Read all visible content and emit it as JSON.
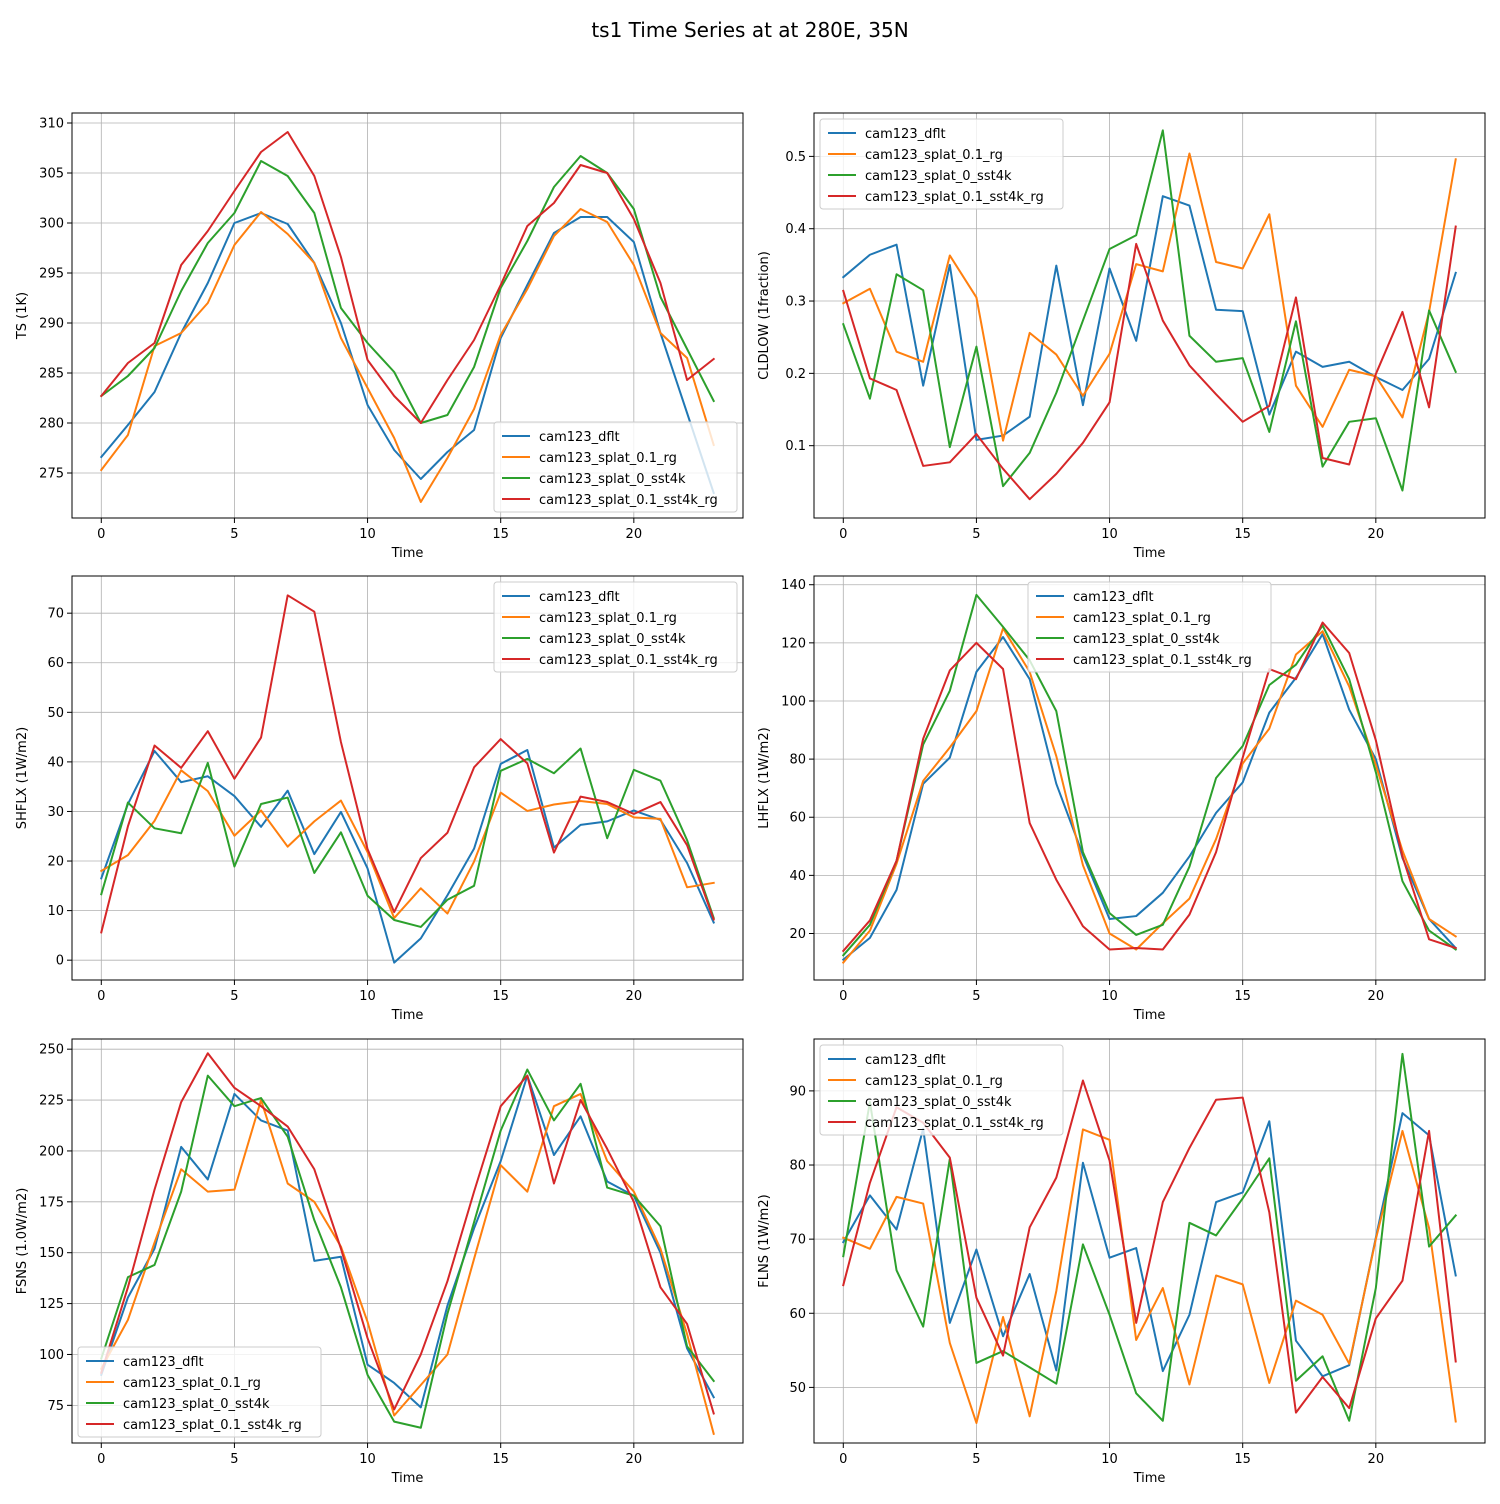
{
  "figure_title": "ts1 Time Series at at 280E, 35N",
  "colors": {
    "cam123_dflt": "#1f77b4",
    "cam123_splat_0.1_rg": "#ff7f0e",
    "cam123_splat_0_sst4k": "#2ca02c",
    "cam123_splat_0.1_sst4k_rg": "#d62728"
  },
  "chart_data": [
    {
      "type": "line",
      "xlabel": "Time",
      "ylabel": "TS (1K)",
      "xlim": [
        -1.1,
        24.1
      ],
      "ylim": [
        270.5,
        311.0
      ],
      "xticks": [
        0,
        5,
        10,
        15,
        20
      ],
      "yticks": [
        275,
        280,
        285,
        290,
        295,
        300,
        305,
        310
      ],
      "grid": true,
      "legend_position": "lower-right",
      "x": [
        0,
        1,
        2,
        3,
        4,
        5,
        6,
        7,
        8,
        9,
        10,
        11,
        12,
        13,
        14,
        15,
        16,
        17,
        18,
        19,
        20,
        21,
        22,
        23
      ],
      "series": [
        {
          "name": "cam123_dflt",
          "values": [
            276.6,
            279.8,
            283.1,
            289.0,
            294.0,
            300.0,
            301.0,
            299.9,
            296.0,
            290.0,
            281.8,
            277.3,
            274.4,
            277.1,
            279.3,
            288.5,
            293.8,
            299.0,
            300.6,
            300.6,
            298.1,
            289.0,
            281.0,
            273.0
          ]
        },
        {
          "name": "cam123_splat_0.1_rg",
          "values": [
            275.3,
            278.8,
            287.7,
            289.0,
            292.0,
            297.8,
            301.1,
            298.9,
            296.0,
            288.5,
            283.5,
            278.5,
            272.1,
            276.5,
            281.4,
            288.8,
            293.4,
            298.7,
            301.4,
            300.1,
            295.8,
            289.0,
            286.5,
            277.8
          ]
        },
        {
          "name": "cam123_splat_0_sst4k",
          "values": [
            282.7,
            284.7,
            287.5,
            293.2,
            298.0,
            301.0,
            306.2,
            304.7,
            301.0,
            291.5,
            288.0,
            285.1,
            280.0,
            280.8,
            285.6,
            293.5,
            298.2,
            303.6,
            306.7,
            305.0,
            301.4,
            292.6,
            287.4,
            282.2
          ]
        },
        {
          "name": "cam123_splat_0.1_sst4k_rg",
          "values": [
            282.7,
            286.0,
            288.0,
            295.8,
            299.2,
            303.2,
            307.1,
            309.1,
            304.7,
            296.6,
            286.3,
            282.7,
            280.0,
            284.3,
            288.3,
            293.8,
            299.7,
            302.0,
            305.8,
            305.0,
            300.4,
            294.0,
            284.3,
            286.4
          ]
        }
      ]
    },
    {
      "type": "line",
      "xlabel": "Time",
      "ylabel": "CLDLOW (1fraction)",
      "xlim": [
        -1.1,
        24.1
      ],
      "ylim": [
        0.0,
        0.56
      ],
      "xticks": [
        0,
        5,
        10,
        15,
        20
      ],
      "yticks": [
        0.1,
        0.2,
        0.3,
        0.4,
        0.5
      ],
      "grid": true,
      "legend_position": "top-left",
      "x": [
        0,
        1,
        2,
        3,
        4,
        5,
        6,
        7,
        8,
        9,
        10,
        11,
        12,
        13,
        14,
        15,
        16,
        17,
        18,
        19,
        20,
        21,
        22,
        23
      ],
      "series": [
        {
          "name": "cam123_dflt",
          "values": [
            0.333,
            0.364,
            0.378,
            0.183,
            0.35,
            0.108,
            0.114,
            0.14,
            0.349,
            0.156,
            0.345,
            0.245,
            0.445,
            0.432,
            0.288,
            0.286,
            0.143,
            0.23,
            0.209,
            0.216,
            0.195,
            0.177,
            0.22,
            0.339
          ]
        },
        {
          "name": "cam123_splat_0.1_rg",
          "values": [
            0.297,
            0.317,
            0.23,
            0.216,
            0.363,
            0.305,
            0.107,
            0.256,
            0.226,
            0.169,
            0.227,
            0.351,
            0.341,
            0.504,
            0.354,
            0.345,
            0.42,
            0.183,
            0.126,
            0.205,
            0.196,
            0.139,
            0.285,
            0.496
          ]
        },
        {
          "name": "cam123_splat_0_sst4k",
          "values": [
            0.268,
            0.165,
            0.337,
            0.315,
            0.098,
            0.237,
            0.044,
            0.09,
            0.173,
            0.273,
            0.372,
            0.391,
            0.536,
            0.252,
            0.216,
            0.221,
            0.119,
            0.272,
            0.071,
            0.133,
            0.138,
            0.038,
            0.287,
            0.202
          ]
        },
        {
          "name": "cam123_splat_0.1_sst4k_rg",
          "values": [
            0.314,
            0.193,
            0.177,
            0.072,
            0.077,
            0.116,
            0.068,
            0.026,
            0.061,
            0.104,
            0.16,
            0.379,
            0.273,
            0.211,
            0.171,
            0.133,
            0.155,
            0.305,
            0.083,
            0.074,
            0.199,
            0.285,
            0.153,
            0.403
          ]
        }
      ]
    },
    {
      "type": "line",
      "xlabel": "Time",
      "ylabel": "SHFLX (1W/m2)",
      "xlim": [
        -1.1,
        24.1
      ],
      "ylim": [
        -4.0,
        77.5
      ],
      "xticks": [
        0,
        5,
        10,
        15,
        20
      ],
      "yticks": [
        0,
        10,
        20,
        30,
        40,
        50,
        60,
        70
      ],
      "grid": true,
      "legend_position": "top-right",
      "x": [
        0,
        1,
        2,
        3,
        4,
        5,
        6,
        7,
        8,
        9,
        10,
        11,
        12,
        13,
        14,
        15,
        16,
        17,
        18,
        19,
        20,
        21,
        22,
        23
      ],
      "series": [
        {
          "name": "cam123_dflt",
          "values": [
            16.5,
            31.5,
            42.2,
            35.9,
            37.1,
            33.1,
            26.9,
            34.2,
            21.4,
            29.9,
            18.5,
            -0.5,
            4.4,
            13.1,
            22.5,
            39.6,
            42.4,
            22.7,
            27.3,
            28.0,
            30.2,
            28.3,
            19.6,
            7.6
          ]
        },
        {
          "name": "cam123_splat_0.1_rg",
          "values": [
            18.0,
            21.2,
            28.1,
            38.3,
            34.1,
            25.1,
            30.2,
            22.9,
            28.0,
            32.2,
            21.8,
            8.5,
            14.5,
            9.4,
            19.9,
            33.8,
            30.1,
            31.4,
            32.1,
            31.5,
            28.8,
            28.5,
            14.7,
            15.6
          ]
        },
        {
          "name": "cam123_splat_0_sst4k",
          "values": [
            13.3,
            31.8,
            26.6,
            25.6,
            39.8,
            18.9,
            31.5,
            32.8,
            17.6,
            25.8,
            13.0,
            8.1,
            6.7,
            12.2,
            15.0,
            38.2,
            40.6,
            37.7,
            42.7,
            24.6,
            38.4,
            36.2,
            24.2,
            8.5
          ]
        },
        {
          "name": "cam123_splat_0.1_sst4k_rg",
          "values": [
            5.6,
            27.0,
            43.3,
            38.8,
            46.2,
            36.6,
            44.9,
            73.6,
            70.3,
            44.0,
            22.4,
            9.7,
            20.6,
            25.7,
            38.9,
            44.6,
            39.7,
            21.7,
            33.0,
            31.9,
            29.5,
            31.9,
            23.2,
            8.2
          ]
        }
      ]
    },
    {
      "type": "line",
      "xlabel": "Time",
      "ylabel": "LHFLX (1W/m2)",
      "xlim": [
        -1.1,
        24.1
      ],
      "ylim": [
        4.0,
        143.0
      ],
      "xticks": [
        0,
        5,
        10,
        15,
        20
      ],
      "yticks": [
        20,
        40,
        60,
        80,
        100,
        120,
        140
      ],
      "grid": true,
      "legend_position": "top-center",
      "x": [
        0,
        1,
        2,
        3,
        4,
        5,
        6,
        7,
        8,
        9,
        10,
        11,
        12,
        13,
        14,
        15,
        16,
        17,
        18,
        19,
        20,
        21,
        22,
        23
      ],
      "series": [
        {
          "name": "cam123_dflt",
          "values": [
            11.0,
            18.5,
            35.0,
            71.5,
            80.5,
            110.0,
            122.0,
            107.5,
            71.5,
            47.0,
            25.0,
            26.0,
            34.0,
            46.5,
            61.5,
            72.0,
            96.0,
            108.0,
            123.0,
            97.0,
            80.0,
            46.0,
            25.0,
            15.0
          ]
        },
        {
          "name": "cam123_splat_0.1_rg",
          "values": [
            10.0,
            21.0,
            44.0,
            72.5,
            84.0,
            96.5,
            125.0,
            110.0,
            81.0,
            43.5,
            20.0,
            14.5,
            23.5,
            32.0,
            52.5,
            78.5,
            90.5,
            116.0,
            124.0,
            105.0,
            78.0,
            48.5,
            25.0,
            19.0
          ]
        },
        {
          "name": "cam123_splat_0_sst4k",
          "values": [
            12.5,
            23.0,
            45.0,
            85.0,
            103.5,
            136.5,
            125.5,
            114.0,
            96.5,
            48.0,
            27.0,
            19.5,
            23.0,
            43.0,
            73.5,
            84.5,
            105.5,
            112.5,
            126.0,
            107.5,
            75.5,
            38.0,
            21.0,
            14.5
          ]
        },
        {
          "name": "cam123_splat_0.1_sst4k_rg",
          "values": [
            14.0,
            24.5,
            45.0,
            87.0,
            110.5,
            120.0,
            111.0,
            58.0,
            38.5,
            22.5,
            14.5,
            15.0,
            14.5,
            26.5,
            48.0,
            80.5,
            111.0,
            107.5,
            127.0,
            116.5,
            86.5,
            46.5,
            18.0,
            15.0
          ]
        }
      ]
    },
    {
      "type": "line",
      "xlabel": "Time",
      "ylabel": "FSNS (1.0W/m2)",
      "xlim": [
        -1.1,
        24.1
      ],
      "ylim": [
        56.5,
        255.0
      ],
      "xticks": [
        0,
        5,
        10,
        15,
        20
      ],
      "yticks": [
        75,
        100,
        125,
        150,
        175,
        200,
        225,
        250
      ],
      "grid": true,
      "legend_position": "lower-left",
      "x": [
        0,
        1,
        2,
        3,
        4,
        5,
        6,
        7,
        8,
        9,
        10,
        11,
        12,
        13,
        14,
        15,
        16,
        17,
        18,
        19,
        20,
        21,
        22,
        23
      ],
      "series": [
        {
          "name": "cam123_dflt",
          "values": [
            90.0,
            128.0,
            152.0,
            202.0,
            186.0,
            228.0,
            215.0,
            210.0,
            146.0,
            148.0,
            95.0,
            86.0,
            74.0,
            124.0,
            162.0,
            195.0,
            237.0,
            198.0,
            217.0,
            185.0,
            178.0,
            150.0,
            103.0,
            79.0
          ]
        },
        {
          "name": "cam123_splat_0.1_rg",
          "values": [
            93.0,
            117.0,
            155.0,
            191.0,
            180.0,
            181.0,
            225.0,
            184.0,
            175.0,
            153.0,
            116.0,
            70.0,
            85.0,
            100.0,
            147.0,
            193.0,
            180.0,
            222.0,
            228.0,
            195.0,
            180.0,
            152.0,
            110.0,
            61.0
          ]
        },
        {
          "name": "cam123_splat_0_sst4k",
          "values": [
            98.0,
            138.0,
            144.0,
            180.0,
            237.0,
            222.0,
            226.0,
            207.0,
            166.0,
            133.0,
            90.0,
            67.0,
            64.0,
            120.0,
            165.0,
            210.0,
            240.0,
            215.0,
            233.0,
            182.0,
            178.0,
            163.0,
            104.0,
            87.0
          ]
        },
        {
          "name": "cam123_splat_0.1_sst4k_rg",
          "values": [
            91.0,
            133.0,
            181.0,
            224.0,
            248.0,
            231.0,
            222.0,
            212.0,
            191.0,
            152.0,
            108.0,
            73.0,
            100.0,
            136.0,
            180.0,
            222.0,
            237.0,
            184.0,
            225.0,
            201.0,
            175.0,
            133.0,
            115.0,
            71.0
          ]
        }
      ]
    },
    {
      "type": "line",
      "xlabel": "Time",
      "ylabel": "FLNS (1W/m2)",
      "xlim": [
        -1.1,
        24.1
      ],
      "ylim": [
        42.5,
        97.0
      ],
      "xticks": [
        0,
        5,
        10,
        15,
        20
      ],
      "yticks": [
        50,
        60,
        70,
        80,
        90
      ],
      "grid": true,
      "legend_position": "top-left",
      "x": [
        0,
        1,
        2,
        3,
        4,
        5,
        6,
        7,
        8,
        9,
        10,
        11,
        12,
        13,
        14,
        15,
        16,
        17,
        18,
        19,
        20,
        21,
        22,
        23
      ],
      "series": [
        {
          "name": "cam123_dflt",
          "values": [
            69.6,
            75.9,
            71.3,
            84.9,
            58.7,
            68.6,
            56.9,
            65.3,
            52.3,
            80.3,
            67.5,
            68.8,
            52.2,
            59.8,
            75.0,
            76.3,
            85.9,
            56.3,
            51.5,
            53.0,
            70.2,
            87.0,
            84.0,
            65.1
          ]
        },
        {
          "name": "cam123_splat_0.1_rg",
          "values": [
            70.2,
            68.7,
            75.7,
            74.8,
            56.0,
            45.2,
            59.5,
            46.1,
            63.0,
            84.8,
            83.4,
            56.4,
            63.4,
            50.4,
            65.1,
            63.9,
            50.6,
            61.7,
            59.8,
            53.2,
            70.0,
            84.6,
            71.5,
            45.4
          ]
        },
        {
          "name": "cam123_splat_0_sst4k",
          "values": [
            67.7,
            88.5,
            65.8,
            58.2,
            80.8,
            53.3,
            54.9,
            52.7,
            50.5,
            69.3,
            59.8,
            49.2,
            45.5,
            72.2,
            70.5,
            75.5,
            80.9,
            50.9,
            54.2,
            45.5,
            63.4,
            95.0,
            69.0,
            73.2
          ]
        },
        {
          "name": "cam123_splat_0.1_sst4k_rg",
          "values": [
            63.8,
            77.6,
            87.8,
            85.7,
            81.0,
            62.1,
            54.3,
            71.6,
            78.3,
            91.4,
            80.6,
            58.7,
            75.0,
            82.3,
            88.8,
            89.1,
            73.6,
            46.6,
            51.4,
            47.2,
            59.3,
            64.4,
            84.6,
            53.5
          ]
        }
      ]
    }
  ]
}
